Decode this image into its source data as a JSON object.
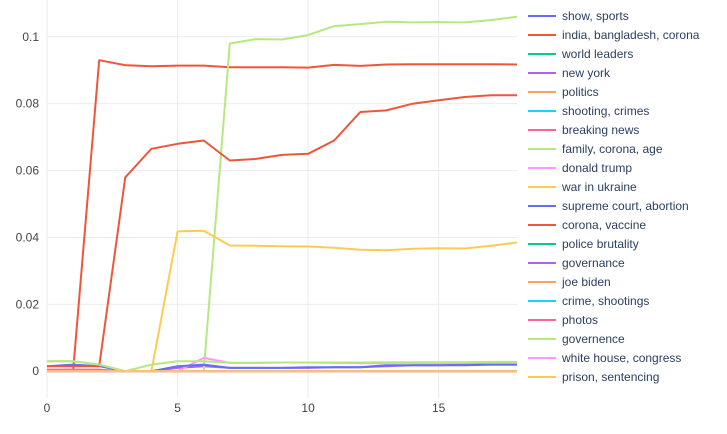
{
  "chart_data": {
    "type": "line",
    "x": [
      0,
      1,
      2,
      3,
      4,
      5,
      6,
      7,
      8,
      9,
      10,
      11,
      12,
      13,
      14,
      15,
      16,
      17,
      18
    ],
    "xlim": [
      0,
      18
    ],
    "ylim": [
      -0.008,
      0.111
    ],
    "x_ticks": [
      0,
      5,
      10,
      15
    ],
    "y_ticks": [
      0,
      0.02,
      0.04,
      0.06,
      0.08,
      0.1
    ],
    "x_tick_labels": [
      "0",
      "5",
      "10",
      "15"
    ],
    "y_tick_labels": [
      "0",
      "0.02",
      "0.04",
      "0.06",
      "0.08",
      "0.1"
    ],
    "grid": true,
    "legend_position": "right",
    "series": [
      {
        "name": "show, sports",
        "color": "#636efa",
        "values": [
          0,
          0,
          0,
          0,
          0,
          0,
          0,
          0,
          0,
          0,
          0,
          0,
          0,
          0,
          0,
          0,
          0,
          0,
          0
        ]
      },
      {
        "name": "india, bangladesh, corona",
        "color": "#EF553B",
        "values": [
          0,
          0,
          0.093,
          0.0915,
          0.0912,
          0.0914,
          0.0914,
          0.0909,
          0.0909,
          0.0909,
          0.0908,
          0.0916,
          0.0913,
          0.0917,
          0.0918,
          0.0918,
          0.0918,
          0.0918,
          0.0917
        ]
      },
      {
        "name": "world leaders",
        "color": "#00cc96",
        "values": [
          0,
          0,
          0,
          0,
          0,
          0,
          0,
          0,
          0,
          0,
          0,
          0,
          0,
          0,
          0,
          0,
          0,
          0,
          0
        ]
      },
      {
        "name": "new york",
        "color": "#ab63fa",
        "values": [
          0,
          0,
          0,
          0,
          0,
          0.001,
          0.0015,
          0.001,
          0.001,
          0.001,
          0.001,
          0.0012,
          0.0012,
          0.0015,
          0.0018,
          0.0018,
          0.002,
          0.002,
          0.002
        ]
      },
      {
        "name": "politics",
        "color": "#FFA15A",
        "values": [
          0,
          0,
          0,
          0,
          0,
          0,
          0,
          0,
          0,
          0,
          0,
          0,
          0,
          0,
          0,
          0,
          0,
          0,
          0
        ]
      },
      {
        "name": "shooting, crimes",
        "color": "#19d3f3",
        "values": [
          0,
          0,
          0,
          0,
          0,
          0,
          0,
          0,
          0,
          0,
          0,
          0,
          0,
          0,
          0,
          0,
          0,
          0,
          0
        ]
      },
      {
        "name": "breaking news",
        "color": "#FF6692",
        "values": [
          0,
          0,
          0,
          0,
          0,
          0,
          0,
          0,
          0,
          0,
          0,
          0,
          0,
          0,
          0,
          0,
          0,
          0,
          0
        ]
      },
      {
        "name": "family, corona, age",
        "color": "#B6E880",
        "values": [
          0.003,
          0.003,
          0.002,
          0,
          0,
          0,
          0,
          0.098,
          0.0993,
          0.0992,
          0.1005,
          0.1032,
          0.1038,
          0.1045,
          0.1043,
          0.1044,
          0.1043,
          0.105,
          0.106
        ]
      },
      {
        "name": "donald trump",
        "color": "#FF97FF",
        "values": [
          0,
          0,
          0,
          0,
          0,
          0,
          0.004,
          0.0025,
          0.0025,
          0.0026,
          0.0026,
          0.0025,
          0.0024,
          0.0025,
          0.0025,
          0.0025,
          0.0025,
          0.0027,
          0.0027
        ]
      },
      {
        "name": "war in ukraine",
        "color": "#FECB52",
        "values": [
          0,
          0,
          0,
          0,
          0,
          0.0418,
          0.042,
          0.0376,
          0.0375,
          0.0374,
          0.0373,
          0.0369,
          0.0363,
          0.0362,
          0.0366,
          0.0368,
          0.0367,
          0.0375,
          0.0385
        ]
      },
      {
        "name": "supreme court, abortion",
        "color": "#636efa",
        "values": [
          0.0015,
          0.002,
          0.0015,
          0,
          0,
          0.0015,
          0.002,
          0.001,
          0.001,
          0.001,
          0.0012,
          0.0012,
          0.0012,
          0.0018,
          0.0018,
          0.0018,
          0.0018,
          0.002,
          0.002
        ]
      },
      {
        "name": "corona, vaccine",
        "color": "#EF553B",
        "values": [
          0.0015,
          0.0015,
          0.0015,
          0.058,
          0.0665,
          0.068,
          0.069,
          0.063,
          0.0635,
          0.0647,
          0.065,
          0.069,
          0.0775,
          0.078,
          0.08,
          0.081,
          0.082,
          0.0825,
          0.0825
        ]
      },
      {
        "name": "police brutality",
        "color": "#00cc96",
        "values": [
          0,
          0,
          0,
          0,
          0,
          0,
          0,
          0,
          0,
          0,
          0,
          0,
          0,
          0,
          0,
          0,
          0,
          0,
          0
        ]
      },
      {
        "name": "governance",
        "color": "#ab63fa",
        "values": [
          0,
          0,
          0,
          0,
          0,
          0,
          0,
          0,
          0,
          0,
          0,
          0,
          0,
          0,
          0,
          0,
          0,
          0,
          0
        ]
      },
      {
        "name": "joe biden",
        "color": "#FFA15A",
        "values": [
          0,
          0,
          0,
          0,
          0,
          0,
          0,
          0,
          0,
          0,
          0,
          0,
          0,
          0,
          0,
          0,
          0,
          0,
          0
        ]
      },
      {
        "name": "crime, shootings",
        "color": "#19d3f3",
        "values": [
          0,
          0,
          0,
          0,
          0,
          0,
          0,
          0,
          0,
          0,
          0,
          0,
          0,
          0,
          0,
          0,
          0,
          0,
          0
        ]
      },
      {
        "name": "photos",
        "color": "#FF6692",
        "values": [
          0.0005,
          0.0005,
          0.0005,
          0,
          0,
          0,
          0,
          0,
          0,
          0,
          0,
          0,
          0,
          0,
          0,
          0,
          0,
          0,
          0
        ]
      },
      {
        "name": "governence",
        "color": "#B6E880",
        "values": [
          0.003,
          0.003,
          0.002,
          0,
          0.002,
          0.003,
          0.003,
          0.0025,
          0.0025,
          0.0026,
          0.0026,
          0.0026,
          0.0026,
          0.0027,
          0.0027,
          0.0027,
          0.0027,
          0.0028,
          0.0028
        ]
      },
      {
        "name": "white house, congress",
        "color": "#FF97FF",
        "values": [
          0,
          0,
          0,
          0,
          0,
          0,
          0,
          0,
          0,
          0,
          0,
          0,
          0,
          0,
          0,
          0,
          0,
          0,
          0
        ]
      },
      {
        "name": "prison, sentencing",
        "color": "#FECB52",
        "values": [
          0,
          0,
          0,
          0,
          0,
          0,
          0,
          0,
          0,
          0,
          0,
          0,
          0,
          0,
          0,
          0,
          0,
          0,
          0
        ]
      }
    ]
  }
}
